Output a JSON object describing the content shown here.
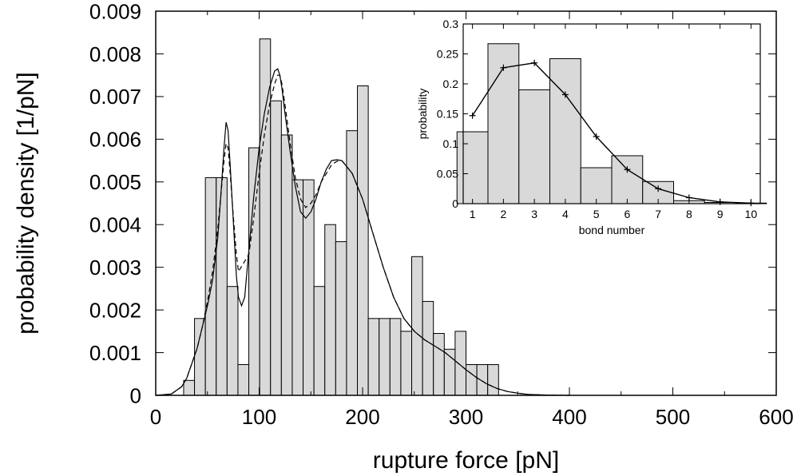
{
  "chart_data": [
    {
      "type": "bar",
      "name": "main",
      "xlabel": "rupture force [pN]",
      "ylabel": "probability density [1/pN]",
      "xlim": [
        0,
        600
      ],
      "ylim": [
        0,
        0.009
      ],
      "xticks": [
        "0",
        "100",
        "200",
        "300",
        "400",
        "500",
        "600"
      ],
      "yticks": [
        "0",
        "0.001",
        "0.002",
        "0.003",
        "0.004",
        "0.005",
        "0.006",
        "0.007",
        "0.008",
        "0.009"
      ],
      "histogram": {
        "bin_width": 10.5,
        "bin_starts": [
          27,
          37.5,
          48,
          58.5,
          69,
          79.5,
          90,
          100.5,
          111,
          121.5,
          132,
          142.5,
          153,
          163.5,
          174,
          184.5,
          195,
          205.5,
          216,
          226.5,
          237,
          247.5,
          258,
          268.5,
          279,
          289.5,
          300,
          310.5,
          321
        ],
        "values": [
          0.00035,
          0.0018,
          0.0051,
          0.0051,
          0.00255,
          0.00072,
          0.0058,
          0.00835,
          0.0069,
          0.0061,
          0.00505,
          0.00505,
          0.00255,
          0.004,
          0.0036,
          0.0062,
          0.00725,
          0.0018,
          0.0018,
          0.0018,
          0.0015,
          0.00325,
          0.0022,
          0.00145,
          0.00108,
          0.0015,
          0.00072,
          0.00072,
          0.00072
        ]
      },
      "series": [
        {
          "style": "solid",
          "x": [
            0,
            15,
            25,
            30,
            40,
            45,
            50,
            55,
            60,
            63,
            66,
            68,
            70,
            72,
            75,
            78,
            80,
            83,
            86,
            90,
            95,
            100,
            105,
            110,
            115,
            118,
            120,
            122,
            125,
            130,
            135,
            140,
            145,
            150,
            155,
            160,
            165,
            170,
            175,
            180,
            190,
            200,
            210,
            220,
            230,
            240,
            250,
            260,
            270,
            280,
            290,
            300,
            310,
            320,
            330,
            340,
            350,
            360,
            380,
            400
          ],
          "y": [
            0,
            3e-05,
            0.0002,
            0.0004,
            0.0011,
            0.0016,
            0.0021,
            0.0027,
            0.0037,
            0.0047,
            0.0058,
            0.0064,
            0.0062,
            0.0054,
            0.0041,
            0.0028,
            0.0023,
            0.0021,
            0.0023,
            0.0034,
            0.0047,
            0.0058,
            0.0066,
            0.0072,
            0.0076,
            0.00765,
            0.0075,
            0.0072,
            0.0066,
            0.0057,
            0.0049,
            0.0043,
            0.00415,
            0.0043,
            0.0046,
            0.005,
            0.0053,
            0.0055,
            0.00552,
            0.0055,
            0.0052,
            0.0046,
            0.0038,
            0.003,
            0.0023,
            0.0018,
            0.0015,
            0.0013,
            0.00115,
            0.001,
            0.0008,
            0.0006,
            0.00042,
            0.00027,
            0.00016,
            9e-05,
            5e-05,
            2e-05,
            5e-06,
            0
          ]
        },
        {
          "style": "dashed",
          "x": [
            0,
            15,
            25,
            30,
            40,
            45,
            50,
            55,
            60,
            63,
            66,
            68,
            70,
            72,
            75,
            78,
            80,
            85,
            90,
            95,
            100,
            105,
            110,
            115,
            118,
            120,
            122,
            125,
            130,
            135,
            140,
            145,
            150,
            155,
            160,
            165,
            170,
            175,
            180,
            190,
            200,
            210,
            220,
            230,
            240,
            250,
            260,
            270,
            280,
            290,
            300,
            310,
            320,
            330,
            340,
            350,
            360,
            380,
            400
          ],
          "y": [
            0,
            3e-05,
            0.0002,
            0.0004,
            0.0011,
            0.0016,
            0.0022,
            0.0029,
            0.0039,
            0.0047,
            0.0055,
            0.0059,
            0.0058,
            0.0052,
            0.0042,
            0.0033,
            0.0029,
            0.0031,
            0.0033,
            0.0042,
            0.0052,
            0.0061,
            0.0068,
            0.0073,
            0.0075,
            0.0075,
            0.0073,
            0.0068,
            0.0059,
            0.0051,
            0.0046,
            0.0044,
            0.0045,
            0.0047,
            0.005,
            0.0052,
            0.0054,
            0.00548,
            0.0055,
            0.0052,
            0.0046,
            0.0038,
            0.003,
            0.0023,
            0.0018,
            0.0015,
            0.0013,
            0.00115,
            0.001,
            0.0008,
            0.0006,
            0.00042,
            0.00027,
            0.00016,
            9e-05,
            5e-05,
            2e-05,
            5e-06,
            0
          ]
        }
      ]
    },
    {
      "type": "bar",
      "name": "inset",
      "xlabel": "bond number",
      "ylabel": "probability",
      "xlim": [
        0.7,
        10.3
      ],
      "ylim": [
        0,
        0.3
      ],
      "xticks": [
        "1",
        "2",
        "3",
        "4",
        "5",
        "6",
        "7",
        "8",
        "9",
        "10"
      ],
      "yticks": [
        "0",
        "0.05",
        "0.1",
        "0.15",
        "0.2",
        "0.25",
        "0.3"
      ],
      "bars": {
        "categories": [
          1,
          2,
          3,
          4,
          5,
          6,
          7,
          8,
          9,
          10
        ],
        "values": [
          0.12,
          0.267,
          0.19,
          0.242,
          0.06,
          0.08,
          0.037,
          0.005,
          0.002,
          0.001
        ]
      },
      "series": [
        {
          "style": "solid-plus",
          "x": [
            1,
            2,
            3,
            4,
            5,
            6,
            7,
            8,
            9,
            10
          ],
          "y": [
            0.147,
            0.227,
            0.235,
            0.182,
            0.112,
            0.057,
            0.025,
            0.01,
            0.003,
            0.001
          ]
        }
      ]
    }
  ]
}
